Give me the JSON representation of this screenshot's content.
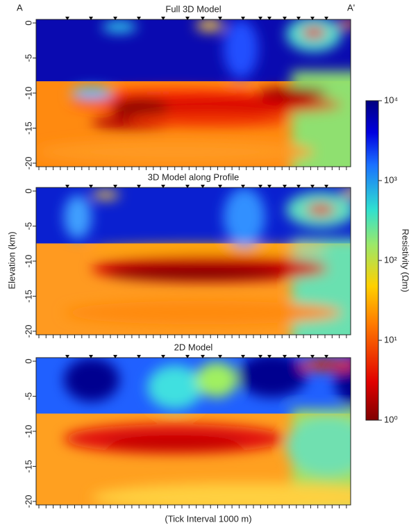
{
  "chart_data": [
    {
      "type": "section",
      "title": "Full 3D Model",
      "ylim": [
        -20.5,
        0.5
      ],
      "yticks": [
        0,
        -5,
        -10,
        -15,
        -20
      ],
      "start_label": "A",
      "end_label": "A'"
    },
    {
      "type": "section",
      "title": "3D Model along Profile",
      "ylim": [
        -20.5,
        0.5
      ],
      "yticks": [
        0,
        -5,
        -10,
        -15,
        -20
      ]
    },
    {
      "type": "section",
      "title": "2D Model",
      "ylim": [
        -20.5,
        0.5
      ],
      "yticks": [
        0,
        -5,
        -10,
        -15,
        -20
      ]
    }
  ],
  "y_label": "Elevation (km)",
  "x_label": "(Tick Interval 1000 m)",
  "colorbar": {
    "label": "Resistivity (Ωm)",
    "log": true,
    "lim": [
      1,
      10000
    ],
    "ticks": [
      {
        "value": 1,
        "label": "10⁰"
      },
      {
        "value": 10,
        "label": "10¹"
      },
      {
        "value": 100,
        "label": "10²"
      },
      {
        "value": 1000,
        "label": "10³"
      },
      {
        "value": 10000,
        "label": "10⁴"
      }
    ]
  }
}
